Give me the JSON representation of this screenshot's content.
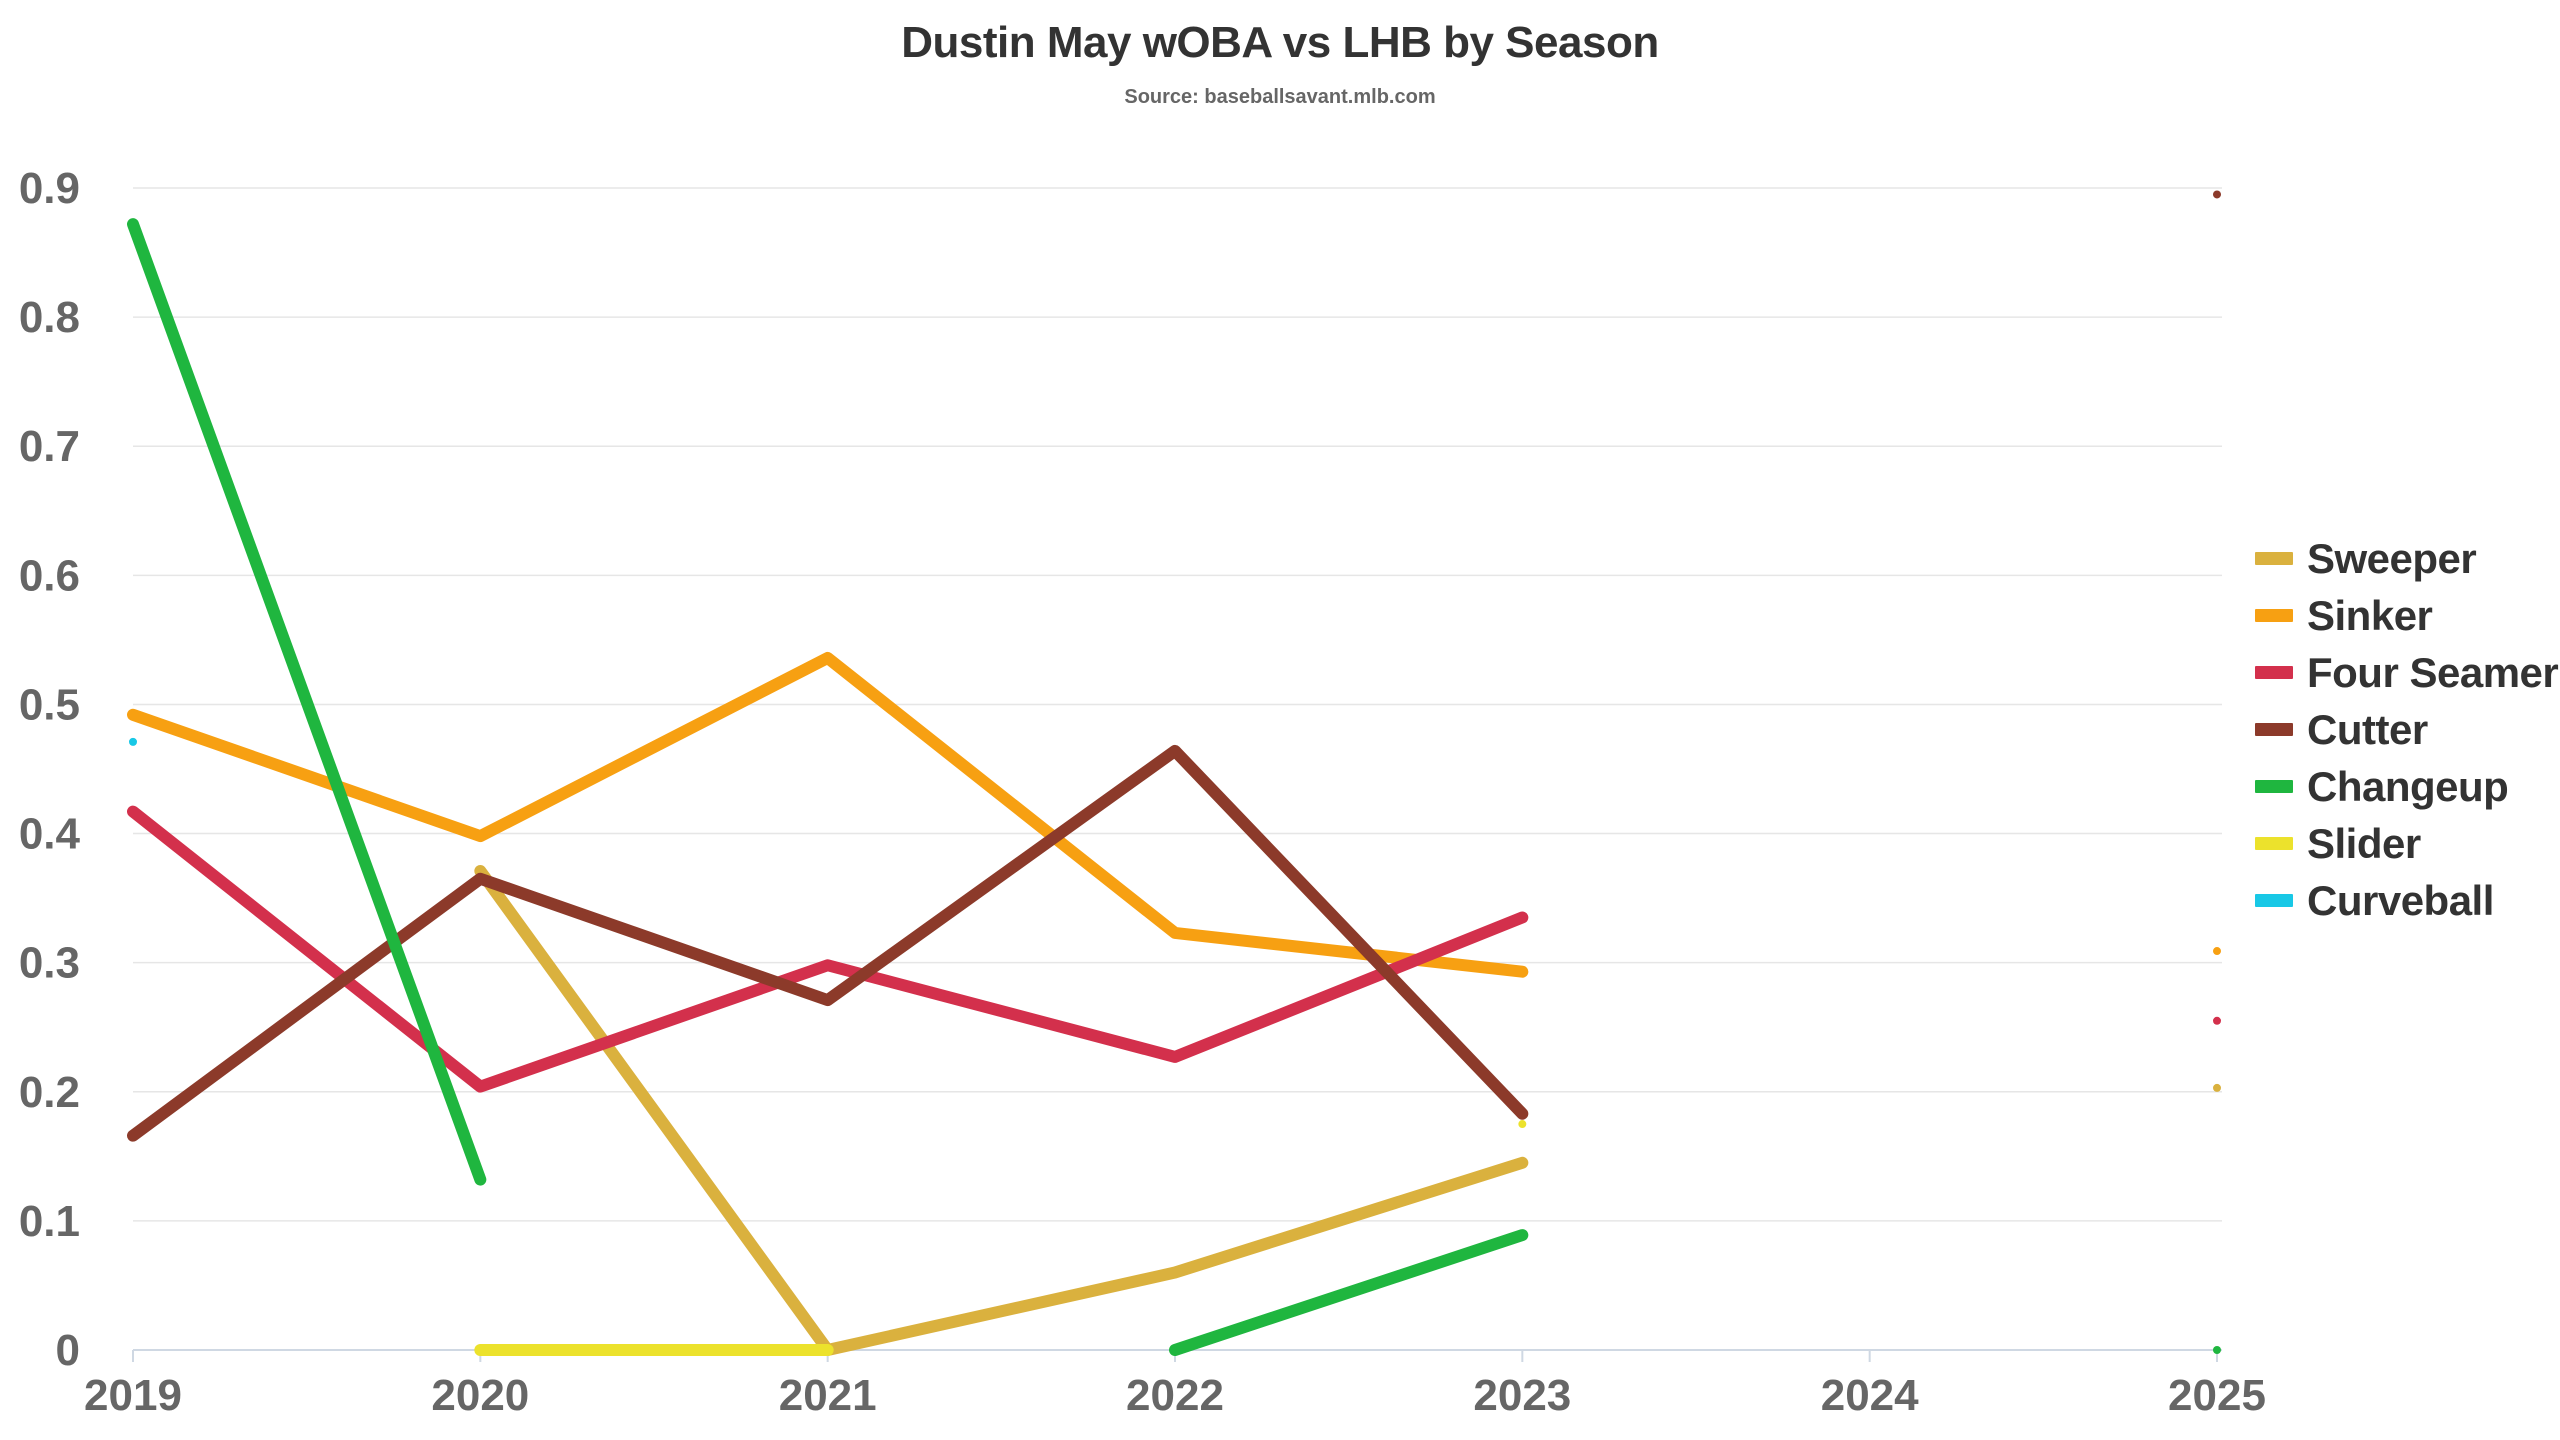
{
  "header": {
    "title": "Dustin May wOBA vs LHB by Season",
    "subtitle": "Source: baseballsavant.mlb.com"
  },
  "chart_data": {
    "type": "line",
    "title": "Dustin May wOBA vs LHB by Season",
    "subtitle": "Source: baseballsavant.mlb.com",
    "xlabel": "",
    "ylabel": "",
    "x": [
      2019,
      2020,
      2021,
      2022,
      2023,
      2024,
      2025
    ],
    "x_tick_labels": [
      "2019",
      "2020",
      "2021",
      "2022",
      "2023",
      "2024",
      "2025"
    ],
    "y_tick_labels": [
      "0",
      "0.1",
      "0.2",
      "0.3",
      "0.4",
      "0.5",
      "0.6",
      "0.7",
      "0.8",
      "0.9"
    ],
    "ylim": [
      0,
      0.9
    ],
    "xlim": [
      2019,
      2025
    ],
    "grid": true,
    "legend_position": "right",
    "series": [
      {
        "name": "Sweeper",
        "color": "#dab13e",
        "values": [
          null,
          0.371,
          0.0,
          0.06,
          0.145,
          null,
          0.203
        ]
      },
      {
        "name": "Sinker",
        "color": "#f7a012",
        "values": [
          0.492,
          0.398,
          0.536,
          0.323,
          0.293,
          null,
          0.309
        ]
      },
      {
        "name": "Four Seamer",
        "color": "#d3304c",
        "values": [
          0.417,
          0.204,
          0.298,
          0.227,
          0.335,
          null,
          0.255
        ]
      },
      {
        "name": "Cutter",
        "color": "#8c3a2a",
        "values": [
          0.166,
          0.365,
          0.271,
          0.464,
          0.183,
          null,
          0.895
        ]
      },
      {
        "name": "Changeup",
        "color": "#1fb63f",
        "values": [
          0.872,
          0.132,
          null,
          0.0,
          0.089,
          null,
          0.0
        ]
      },
      {
        "name": "Slider",
        "color": "#ece22c",
        "values": [
          null,
          0.0,
          0.0,
          null,
          0.175,
          null,
          null
        ]
      },
      {
        "name": "Curveball",
        "color": "#18c8e6",
        "values": [
          0.471,
          null,
          null,
          null,
          null,
          null,
          null
        ]
      }
    ]
  }
}
